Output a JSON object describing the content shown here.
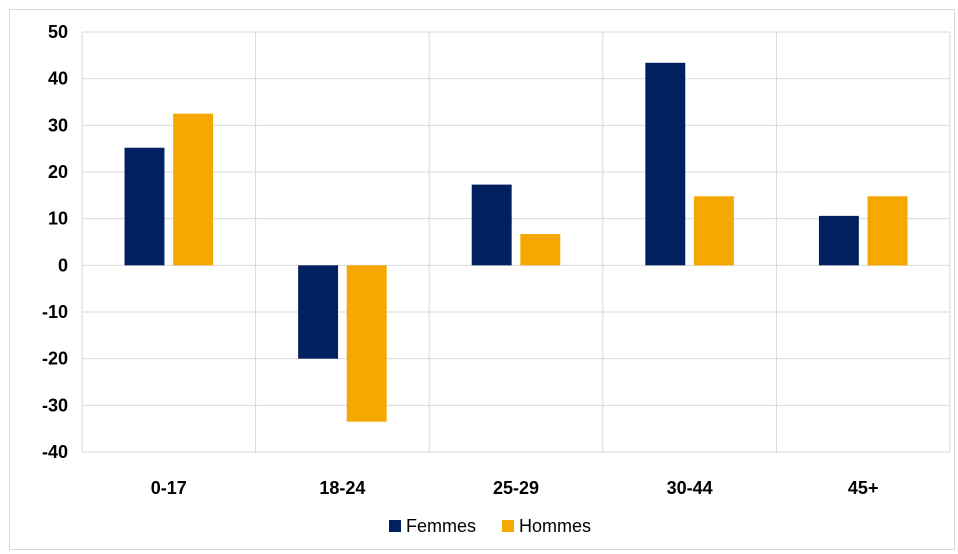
{
  "chart_data": {
    "type": "bar",
    "title": "",
    "xlabel": "",
    "ylabel": "",
    "categories": [
      "0-17",
      "18-24",
      "25-29",
      "30-44",
      "45+"
    ],
    "series": [
      {
        "name": "Femmes",
        "color": "#002060",
        "values": [
          25.2,
          -20.0,
          17.3,
          43.4,
          10.6
        ]
      },
      {
        "name": "Hommes",
        "color": "#F5A800",
        "values": [
          32.5,
          -33.5,
          6.7,
          14.8,
          14.8
        ]
      }
    ],
    "ylim": [
      -40,
      50
    ],
    "yticks": [
      50,
      40,
      30,
      20,
      10,
      0,
      -10,
      -20,
      -30,
      -40
    ],
    "grid": true,
    "legend": "bottom"
  }
}
